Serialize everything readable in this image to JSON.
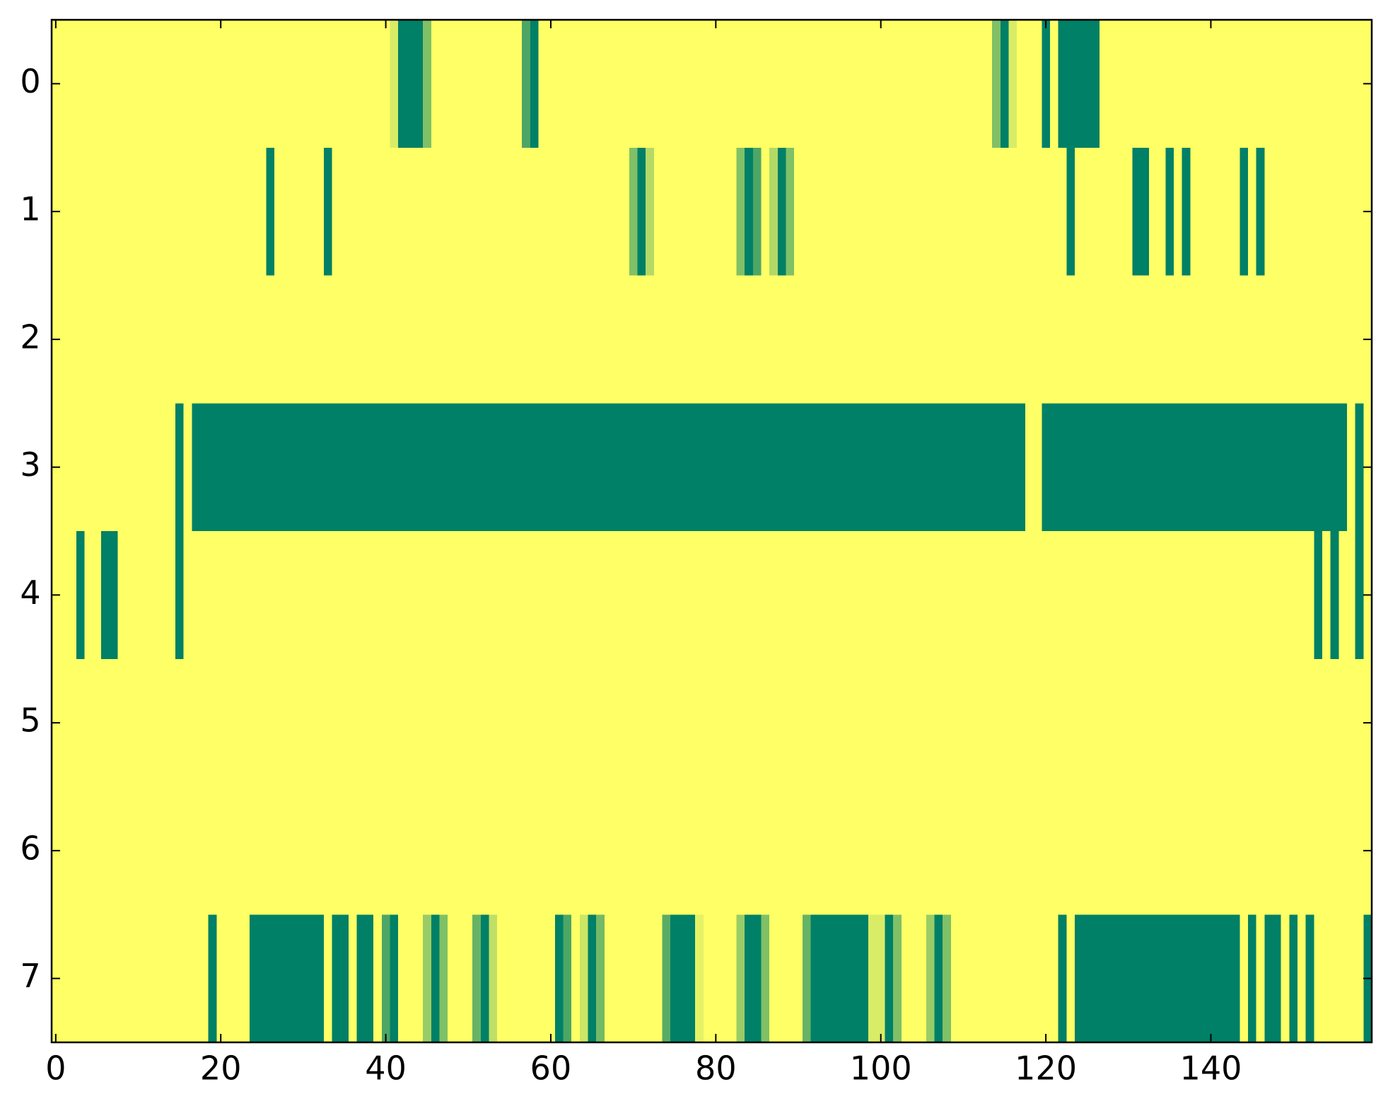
{
  "chart_data": {
    "type": "heatmap",
    "colormap": [
      "#008066",
      "#ffff66"
    ],
    "zlim": [
      0,
      1
    ],
    "xlim": [
      -0.5,
      159.5
    ],
    "ylim": [
      7.5,
      -0.5
    ],
    "xticks": [
      0,
      20,
      40,
      60,
      80,
      100,
      120,
      140
    ],
    "yticks": [
      0,
      1,
      2,
      3,
      4,
      5,
      6,
      7
    ],
    "z": [
      [
        1,
        1,
        1,
        1,
        1,
        1,
        1,
        1,
        1,
        1,
        1,
        1,
        1,
        1,
        1,
        1,
        1,
        1,
        1,
        1,
        1,
        1,
        1,
        1,
        1,
        1,
        1,
        1,
        1,
        1,
        1,
        1,
        1,
        1,
        1,
        1,
        1,
        1,
        1,
        1,
        1,
        0.85,
        0,
        0,
        0,
        0.5,
        1,
        1,
        1,
        1,
        1,
        1,
        1,
        1,
        1,
        1,
        1,
        0.3,
        0,
        1,
        1,
        1,
        1,
        1,
        1,
        1,
        1,
        1,
        1,
        1,
        1,
        1,
        1,
        1,
        1,
        1,
        1,
        1,
        1,
        1,
        1,
        1,
        1,
        1,
        1,
        1,
        1,
        1,
        1,
        1,
        1,
        1,
        1,
        1,
        1,
        1,
        1,
        1,
        1,
        1,
        1,
        1,
        1,
        1,
        1,
        1,
        1,
        1,
        1,
        1,
        1,
        1,
        1,
        1,
        0.5,
        0,
        0.85,
        1,
        1,
        1,
        0,
        1,
        0,
        0,
        0,
        0,
        0,
        1,
        1,
        1,
        1,
        1,
        1,
        1,
        1,
        1,
        1,
        1,
        1,
        1,
        1,
        1,
        1,
        1,
        1,
        1,
        1,
        1,
        1,
        1,
        1,
        1,
        1,
        1,
        1,
        1,
        1,
        1,
        1,
        1
      ],
      [
        1,
        1,
        1,
        1,
        1,
        1,
        1,
        1,
        1,
        1,
        1,
        1,
        1,
        1,
        1,
        1,
        1,
        1,
        1,
        1,
        1,
        1,
        1,
        1,
        1,
        1,
        0,
        1,
        1,
        1,
        1,
        1,
        1,
        0,
        1,
        1,
        1,
        1,
        1,
        1,
        1,
        1,
        1,
        1,
        1,
        1,
        1,
        1,
        1,
        1,
        1,
        1,
        1,
        1,
        1,
        1,
        1,
        1,
        1,
        1,
        1,
        1,
        1,
        1,
        1,
        1,
        1,
        1,
        1,
        1,
        0.5,
        0,
        0.7,
        1,
        1,
        1,
        1,
        1,
        1,
        1,
        1,
        1,
        1,
        0.5,
        0,
        0.3,
        1,
        0.7,
        0,
        0.5,
        1,
        1,
        1,
        1,
        1,
        1,
        1,
        1,
        1,
        1,
        1,
        1,
        1,
        1,
        1,
        1,
        1,
        1,
        1,
        1,
        1,
        1,
        1,
        1,
        1,
        1,
        1,
        1,
        1,
        1,
        1,
        1,
        1,
        0,
        1,
        1,
        1,
        1,
        1,
        1,
        1,
        0,
        0,
        1,
        1,
        0,
        1,
        0,
        1,
        1,
        1,
        1,
        1,
        1,
        0,
        1,
        0,
        1,
        1,
        1,
        1,
        1,
        1,
        1,
        1,
        1,
        1,
        1,
        1,
        1
      ],
      [
        1,
        1,
        1,
        1,
        1,
        1,
        1,
        1,
        1,
        1,
        1,
        1,
        1,
        1,
        1,
        1,
        1,
        1,
        1,
        1,
        1,
        1,
        1,
        1,
        1,
        1,
        1,
        1,
        1,
        1,
        1,
        1,
        1,
        1,
        1,
        1,
        1,
        1,
        1,
        1,
        1,
        1,
        1,
        1,
        1,
        1,
        1,
        1,
        1,
        1,
        1,
        1,
        1,
        1,
        1,
        1,
        1,
        1,
        1,
        1,
        1,
        1,
        1,
        1,
        1,
        1,
        1,
        1,
        1,
        1,
        1,
        1,
        1,
        1,
        1,
        1,
        1,
        1,
        1,
        1,
        1,
        1,
        1,
        1,
        1,
        1,
        1,
        1,
        1,
        1,
        1,
        1,
        1,
        1,
        1,
        1,
        1,
        1,
        1,
        1,
        1,
        1,
        1,
        1,
        1,
        1,
        1,
        1,
        1,
        1,
        1,
        1,
        1,
        1,
        1,
        1,
        1,
        1,
        1,
        1,
        1,
        1,
        1,
        1,
        1,
        1,
        1,
        1,
        1,
        1,
        1,
        1,
        1,
        1,
        1,
        1,
        1,
        1,
        1,
        1,
        1,
        1,
        1,
        1,
        1,
        1,
        1,
        1,
        1,
        1,
        1,
        1,
        1,
        1,
        1,
        1,
        1,
        1,
        1,
        1
      ],
      [
        1,
        1,
        1,
        1,
        1,
        1,
        1,
        1,
        1,
        1,
        1,
        1,
        1,
        1,
        1,
        0,
        1,
        0,
        0,
        0,
        0,
        0,
        0,
        0,
        0,
        0,
        0,
        0,
        0,
        0,
        0,
        0,
        0,
        0,
        0,
        0,
        0,
        0,
        0,
        0,
        0,
        0,
        0,
        0,
        0,
        0,
        0,
        0,
        0,
        0,
        0,
        0,
        0,
        0,
        0,
        0,
        0,
        0,
        0,
        0,
        0,
        0,
        0,
        0,
        0,
        0,
        0,
        0,
        0,
        0,
        0,
        0,
        0,
        0,
        0,
        0,
        0,
        0,
        0,
        0,
        0,
        0,
        0,
        0,
        0,
        0,
        0,
        0,
        0,
        0,
        0,
        0,
        0,
        0,
        0,
        0,
        0,
        0,
        0,
        0,
        0,
        0,
        0,
        0,
        0,
        0,
        0,
        0,
        0,
        0,
        0,
        0,
        0,
        0,
        0,
        0,
        0,
        0,
        1,
        1,
        0,
        0,
        0,
        0,
        0,
        0,
        0,
        0,
        0,
        0,
        0,
        0,
        0,
        0,
        0,
        0,
        0,
        0,
        0,
        0,
        0,
        0,
        0,
        0,
        0,
        0,
        0,
        0,
        0,
        0,
        0,
        0,
        0,
        0,
        0,
        0,
        0,
        1,
        0,
        1
      ],
      [
        1,
        1,
        1,
        0,
        1,
        1,
        0,
        0,
        1,
        1,
        1,
        1,
        1,
        1,
        1,
        0,
        1,
        1,
        1,
        1,
        1,
        1,
        1,
        1,
        1,
        1,
        1,
        1,
        1,
        1,
        1,
        1,
        1,
        1,
        1,
        1,
        1,
        1,
        1,
        1,
        1,
        1,
        1,
        1,
        1,
        1,
        1,
        1,
        1,
        1,
        1,
        1,
        1,
        1,
        1,
        1,
        1,
        1,
        1,
        1,
        1,
        1,
        1,
        1,
        1,
        1,
        1,
        1,
        1,
        1,
        1,
        1,
        1,
        1,
        1,
        1,
        1,
        1,
        1,
        1,
        1,
        1,
        1,
        1,
        1,
        1,
        1,
        1,
        1,
        1,
        1,
        1,
        1,
        1,
        1,
        1,
        1,
        1,
        1,
        1,
        1,
        1,
        1,
        1,
        1,
        1,
        1,
        1,
        1,
        1,
        1,
        1,
        1,
        1,
        1,
        1,
        1,
        1,
        1,
        1,
        1,
        1,
        1,
        1,
        1,
        1,
        1,
        1,
        1,
        1,
        1,
        1,
        1,
        1,
        1,
        1,
        1,
        1,
        1,
        1,
        1,
        1,
        1,
        1,
        1,
        1,
        1,
        1,
        1,
        1,
        1,
        1,
        1,
        0,
        1,
        0,
        1,
        1,
        0,
        1
      ],
      [
        1,
        1,
        1,
        1,
        1,
        1,
        1,
        1,
        1,
        1,
        1,
        1,
        1,
        1,
        1,
        1,
        1,
        1,
        1,
        1,
        1,
        1,
        1,
        1,
        1,
        1,
        1,
        1,
        1,
        1,
        1,
        1,
        1,
        1,
        1,
        1,
        1,
        1,
        1,
        1,
        1,
        1,
        1,
        1,
        1,
        1,
        1,
        1,
        1,
        1,
        1,
        1,
        1,
        1,
        1,
        1,
        1,
        1,
        1,
        1,
        1,
        1,
        1,
        1,
        1,
        1,
        1,
        1,
        1,
        1,
        1,
        1,
        1,
        1,
        1,
        1,
        1,
        1,
        1,
        1,
        1,
        1,
        1,
        1,
        1,
        1,
        1,
        1,
        1,
        1,
        1,
        1,
        1,
        1,
        1,
        1,
        1,
        1,
        1,
        1,
        1,
        1,
        1,
        1,
        1,
        1,
        1,
        1,
        1,
        1,
        1,
        1,
        1,
        1,
        1,
        1,
        1,
        1,
        1,
        1,
        1,
        1,
        1,
        1,
        1,
        1,
        1,
        1,
        1,
        1,
        1,
        1,
        1,
        1,
        1,
        1,
        1,
        1,
        1,
        1,
        1,
        1,
        1,
        1,
        1,
        1,
        1,
        1,
        1,
        1,
        1,
        1,
        1,
        1,
        1,
        1,
        1,
        1,
        1,
        1
      ],
      [
        1,
        1,
        1,
        1,
        1,
        1,
        1,
        1,
        1,
        1,
        1,
        1,
        1,
        1,
        1,
        1,
        1,
        1,
        1,
        1,
        1,
        1,
        1,
        1,
        1,
        1,
        1,
        1,
        1,
        1,
        1,
        1,
        1,
        1,
        1,
        1,
        1,
        1,
        1,
        1,
        1,
        1,
        1,
        1,
        1,
        1,
        1,
        1,
        1,
        1,
        1,
        1,
        1,
        1,
        1,
        1,
        1,
        1,
        1,
        1,
        1,
        1,
        1,
        1,
        1,
        1,
        1,
        1,
        1,
        1,
        1,
        1,
        1,
        1,
        1,
        1,
        1,
        1,
        1,
        1,
        1,
        1,
        1,
        1,
        1,
        1,
        1,
        1,
        1,
        1,
        1,
        1,
        1,
        1,
        1,
        1,
        1,
        1,
        1,
        1,
        1,
        1,
        1,
        1,
        1,
        1,
        1,
        1,
        1,
        1,
        1,
        1,
        1,
        1,
        1,
        1,
        1,
        1,
        1,
        1,
        1,
        1,
        1,
        1,
        1,
        1,
        1,
        1,
        1,
        1,
        1,
        1,
        1,
        1,
        1,
        1,
        1,
        1,
        1,
        1,
        1,
        1,
        1,
        1,
        1,
        1,
        1,
        1,
        1,
        1,
        1,
        1,
        1,
        1,
        1,
        1,
        1,
        1,
        1,
        1
      ],
      [
        1,
        1,
        1,
        1,
        1,
        1,
        1,
        1,
        1,
        1,
        1,
        1,
        1,
        1,
        1,
        1,
        1,
        1,
        1,
        0,
        1,
        1,
        1,
        1,
        0,
        0,
        0,
        0,
        0,
        0,
        0,
        0,
        0,
        1,
        0,
        0,
        1,
        0,
        0,
        1,
        0.3,
        0,
        1,
        1,
        1,
        0.6,
        0,
        0.5,
        1,
        1,
        1,
        0.4,
        0,
        0.75,
        1,
        1,
        1,
        1,
        1,
        1,
        1,
        0,
        0.3,
        1,
        0.8,
        0,
        0.45,
        1,
        1,
        1,
        1,
        1,
        1,
        1,
        0.35,
        0,
        0,
        0,
        0.9,
        1,
        1,
        1,
        1,
        0.6,
        0,
        0,
        0.5,
        1,
        1,
        1,
        1,
        0.4,
        0,
        0,
        0,
        0,
        0,
        0,
        0,
        0.85,
        0.85,
        0,
        0.5,
        1,
        1,
        1,
        0.6,
        0,
        0.5,
        1,
        1,
        1,
        1,
        1,
        1,
        1,
        1,
        1,
        1,
        1,
        1,
        1,
        0,
        1,
        0,
        0,
        0,
        0,
        0,
        0,
        0,
        0,
        0,
        0,
        0,
        0,
        0,
        0,
        0,
        0,
        0,
        0,
        0,
        0,
        1,
        0,
        1,
        0,
        0,
        1,
        0,
        1,
        0,
        1,
        1,
        1,
        1,
        1,
        1,
        0
      ]
    ]
  }
}
